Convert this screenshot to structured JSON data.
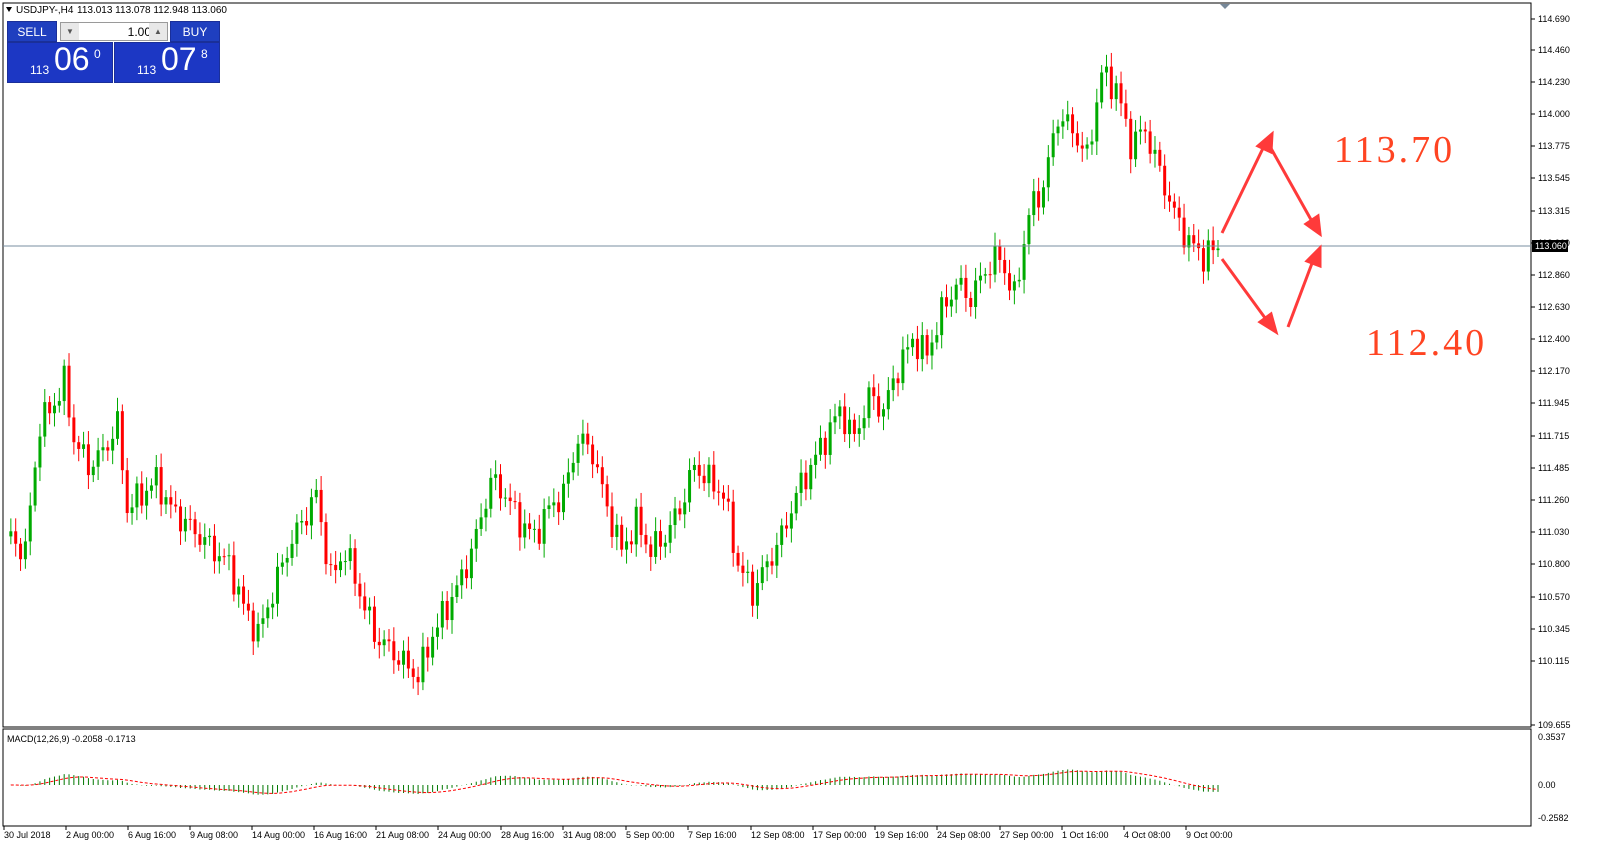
{
  "header": {
    "symbol": "USDJPY-,H4",
    "ohlc": "113.013 113.078 112.948 113.060"
  },
  "trade_panel": {
    "sell_label": "SELL",
    "buy_label": "BUY",
    "lot_value": "1.00",
    "sell_price_prefix": "113",
    "sell_price_main": "06",
    "sell_price_sup": "0",
    "buy_price_prefix": "113",
    "buy_price_main": "07",
    "buy_price_sup": "8"
  },
  "price_axis": {
    "ticks": [
      "114.690",
      "114.460",
      "114.230",
      "114.000",
      "113.775",
      "113.545",
      "113.315",
      "113.060",
      "112.860",
      "112.630",
      "112.400",
      "112.170",
      "111.945",
      "111.715",
      "111.485",
      "111.260",
      "111.030",
      "110.800",
      "110.570",
      "110.345",
      "110.115",
      "109.655"
    ],
    "current_price": "113.060"
  },
  "time_axis": {
    "labels": [
      "30 Jul 2018",
      "2 Aug 00:00",
      "6 Aug 16:00",
      "9 Aug 08:00",
      "14 Aug 00:00",
      "16 Aug 16:00",
      "21 Aug 08:00",
      "24 Aug 00:00",
      "28 Aug 16:00",
      "31 Aug 08:00",
      "5 Sep 00:00",
      "7 Sep 16:00",
      "12 Sep 08:00",
      "17 Sep 00:00",
      "19 Sep 16:00",
      "24 Sep 08:00",
      "27 Sep 00:00",
      "1 Oct 16:00",
      "4 Oct 08:00",
      "9 Oct 00:00"
    ]
  },
  "macd": {
    "label": "MACD(12,26,9) -0.2058 -0.1713",
    "ticks": [
      "0.3537",
      "0.00",
      "-0.2582"
    ]
  },
  "annotations": {
    "target_up": "113.70",
    "target_down": "112.40"
  },
  "colors": {
    "bull": "#00aa00",
    "bear": "#ff0000",
    "macd_hist": "#007700",
    "signal": "#ff0000",
    "annotation": "#ff3333",
    "panel": "#1f3fbf"
  },
  "chart_data": {
    "type": "candlestick",
    "price_range": [
      109.655,
      114.69
    ],
    "approx_close_path": [
      [
        0,
        111.0
      ],
      [
        4,
        110.9
      ],
      [
        7,
        111.8
      ],
      [
        10,
        111.95
      ],
      [
        12,
        112.1
      ],
      [
        14,
        111.7
      ],
      [
        17,
        111.5
      ],
      [
        20,
        111.6
      ],
      [
        23,
        111.8
      ],
      [
        25,
        111.2
      ],
      [
        28,
        111.3
      ],
      [
        31,
        111.4
      ],
      [
        34,
        111.2
      ],
      [
        37,
        111.1
      ],
      [
        40,
        111.0
      ],
      [
        43,
        110.9
      ],
      [
        46,
        110.8
      ],
      [
        49,
        110.5
      ],
      [
        52,
        110.3
      ],
      [
        55,
        110.6
      ],
      [
        58,
        110.9
      ],
      [
        61,
        111.1
      ],
      [
        64,
        111.3
      ],
      [
        67,
        110.7
      ],
      [
        70,
        110.9
      ],
      [
        73,
        110.6
      ],
      [
        76,
        110.3
      ],
      [
        79,
        110.2
      ],
      [
        82,
        110.1
      ],
      [
        85,
        110.0
      ],
      [
        88,
        110.3
      ],
      [
        91,
        110.5
      ],
      [
        94,
        110.7
      ],
      [
        97,
        111.0
      ],
      [
        100,
        111.4
      ],
      [
        103,
        111.3
      ],
      [
        106,
        111.1
      ],
      [
        109,
        111.0
      ],
      [
        112,
        111.2
      ],
      [
        115,
        111.3
      ],
      [
        118,
        111.7
      ],
      [
        121,
        111.6
      ],
      [
        124,
        111.2
      ],
      [
        127,
        110.9
      ],
      [
        130,
        111.1
      ],
      [
        133,
        110.9
      ],
      [
        136,
        111.0
      ],
      [
        139,
        111.2
      ],
      [
        142,
        111.5
      ],
      [
        145,
        111.4
      ],
      [
        148,
        111.3
      ],
      [
        151,
        110.8
      ],
      [
        154,
        110.6
      ],
      [
        157,
        110.8
      ],
      [
        160,
        111.0
      ],
      [
        163,
        111.3
      ],
      [
        166,
        111.5
      ],
      [
        169,
        111.7
      ],
      [
        172,
        111.9
      ],
      [
        175,
        111.7
      ],
      [
        178,
        112.0
      ],
      [
        181,
        111.9
      ],
      [
        184,
        112.2
      ],
      [
        187,
        112.4
      ],
      [
        190,
        112.3
      ],
      [
        193,
        112.6
      ],
      [
        196,
        112.8
      ],
      [
        199,
        112.7
      ],
      [
        202,
        112.9
      ],
      [
        205,
        113.0
      ],
      [
        208,
        112.7
      ],
      [
        211,
        113.3
      ],
      [
        214,
        113.5
      ],
      [
        217,
        114.0
      ],
      [
        220,
        113.9
      ],
      [
        223,
        113.7
      ],
      [
        226,
        114.3
      ],
      [
        229,
        114.2
      ],
      [
        232,
        113.8
      ],
      [
        235,
        113.9
      ],
      [
        238,
        113.6
      ],
      [
        241,
        113.3
      ],
      [
        244,
        113.1
      ],
      [
        247,
        113.0
      ],
      [
        250,
        113.06
      ]
    ]
  }
}
